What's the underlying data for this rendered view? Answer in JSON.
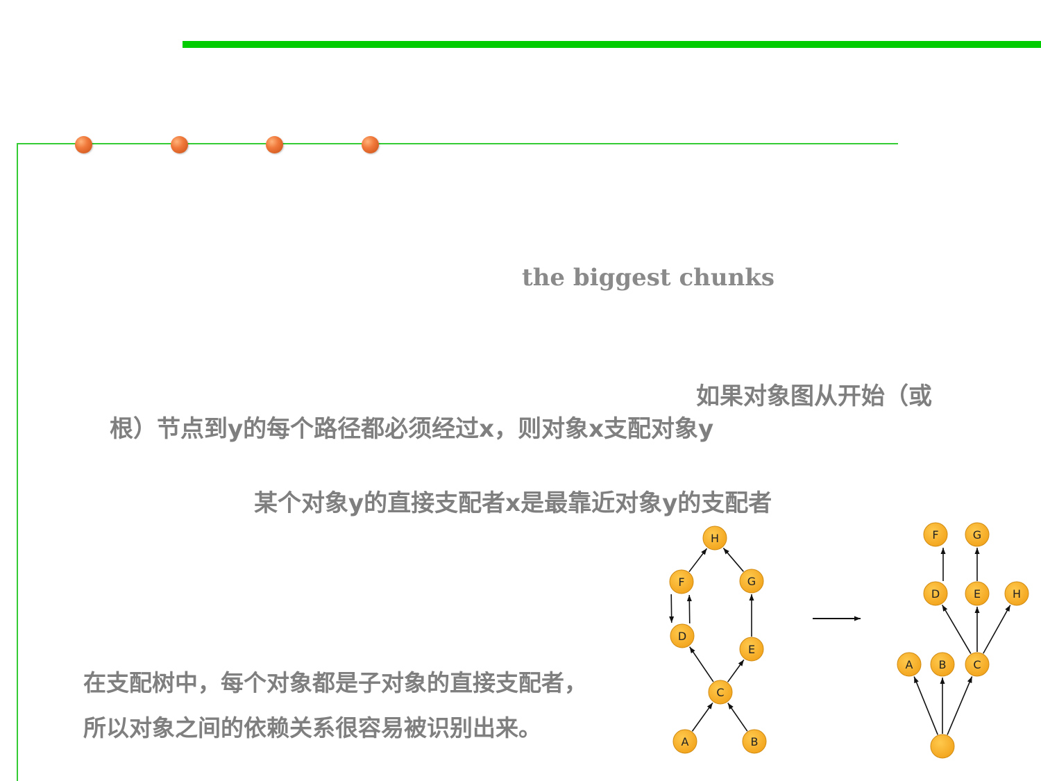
{
  "slide": {
    "subtitle": "the biggest chunks",
    "paragraph1_line1": "如果对象图从开始（或",
    "paragraph1_line2": "根）节点到y的每个路径都必须经过x，则对象x支配对象y",
    "paragraph2": "某个对象y的直接支配者x是最靠近对象y的支配者",
    "paragraph3_line1": "在支配树中，每个对象都是子对象的直接支配者，",
    "paragraph3_line2": "所以对象之间的依赖关系很容易被识别出来。"
  },
  "colors": {
    "accent_green": "#00cc00",
    "line_green": "#33cc33",
    "node_fill": "#f2a31b",
    "text_gray": "#7f7f7f"
  },
  "object_graph": {
    "nodes": [
      "H",
      "F",
      "G",
      "D",
      "E",
      "C",
      "A",
      "B"
    ],
    "edges": [
      [
        "F",
        "H"
      ],
      [
        "G",
        "H"
      ],
      [
        "F",
        "D"
      ],
      [
        "D",
        "F"
      ],
      [
        "E",
        "G"
      ],
      [
        "C",
        "D"
      ],
      [
        "C",
        "E"
      ],
      [
        "A",
        "C"
      ],
      [
        "B",
        "C"
      ]
    ]
  },
  "dominator_tree": {
    "nodes": [
      "F",
      "G",
      "D",
      "E",
      "H",
      "A",
      "B",
      "C",
      ""
    ],
    "edges": [
      [
        "D",
        "F"
      ],
      [
        "E",
        "G"
      ],
      [
        "C",
        "D"
      ],
      [
        "C",
        "E"
      ],
      [
        "C",
        "H"
      ],
      [
        "root",
        "A"
      ],
      [
        "root",
        "B"
      ],
      [
        "root",
        "C"
      ]
    ]
  }
}
